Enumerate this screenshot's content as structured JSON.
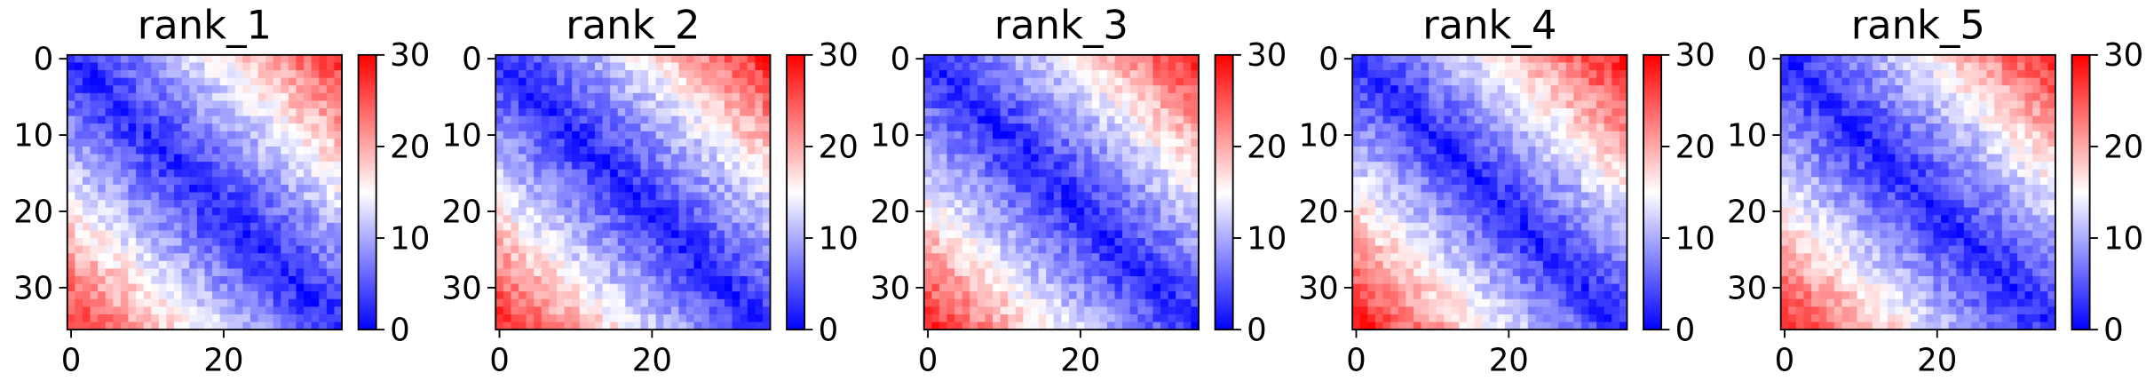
{
  "chart_data": [
    {
      "type": "heatmap",
      "title": "rank_1",
      "rows": 36,
      "cols": 36,
      "xlim": [
        -0.5,
        35.5
      ],
      "ylim": [
        35.5,
        -0.5
      ],
      "xticks": [
        0,
        20
      ],
      "yticks": [
        0,
        10,
        20,
        30
      ],
      "colorbar": {
        "min": 0,
        "max": 30,
        "ticks": [
          0,
          10,
          20,
          30
        ],
        "colormap": "bwr"
      },
      "approx_profile": {
        "diagonal": 2,
        "mid_offset_15": 12,
        "corner_offset_35": 27
      }
    },
    {
      "type": "heatmap",
      "title": "rank_2",
      "rows": 36,
      "cols": 36,
      "xlim": [
        -0.5,
        35.5
      ],
      "ylim": [
        35.5,
        -0.5
      ],
      "xticks": [
        0,
        20
      ],
      "yticks": [
        0,
        10,
        20,
        30
      ],
      "colorbar": {
        "min": 0,
        "max": 30,
        "ticks": [
          0,
          10,
          20,
          30
        ],
        "colormap": "bwr"
      },
      "approx_profile": {
        "diagonal": 2,
        "mid_offset_15": 12,
        "corner_offset_35": 28
      }
    },
    {
      "type": "heatmap",
      "title": "rank_3",
      "rows": 36,
      "cols": 36,
      "xlim": [
        -0.5,
        35.5
      ],
      "ylim": [
        35.5,
        -0.5
      ],
      "xticks": [
        0,
        20
      ],
      "yticks": [
        0,
        10,
        20,
        30
      ],
      "colorbar": {
        "min": 0,
        "max": 30,
        "ticks": [
          0,
          10,
          20,
          30
        ],
        "colormap": "bwr"
      },
      "approx_profile": {
        "diagonal": 2,
        "mid_offset_15": 12,
        "corner_offset_35": 28
      }
    },
    {
      "type": "heatmap",
      "title": "rank_4",
      "rows": 36,
      "cols": 36,
      "xlim": [
        -0.5,
        35.5
      ],
      "ylim": [
        35.5,
        -0.5
      ],
      "xticks": [
        0,
        20
      ],
      "yticks": [
        0,
        10,
        20,
        30
      ],
      "colorbar": {
        "min": 0,
        "max": 30,
        "ticks": [
          0,
          10,
          20,
          30
        ],
        "colormap": "bwr"
      },
      "approx_profile": {
        "diagonal": 2,
        "mid_offset_15": 13,
        "corner_offset_35": 29
      }
    },
    {
      "type": "heatmap",
      "title": "rank_5",
      "rows": 36,
      "cols": 36,
      "xlim": [
        -0.5,
        35.5
      ],
      "ylim": [
        35.5,
        -0.5
      ],
      "xticks": [
        0,
        20
      ],
      "yticks": [
        0,
        10,
        20,
        30
      ],
      "colorbar": {
        "min": 0,
        "max": 30,
        "ticks": [
          0,
          10,
          20,
          30
        ],
        "colormap": "bwr"
      },
      "approx_profile": {
        "diagonal": 2,
        "mid_offset_15": 12,
        "corner_offset_35": 28
      }
    }
  ]
}
